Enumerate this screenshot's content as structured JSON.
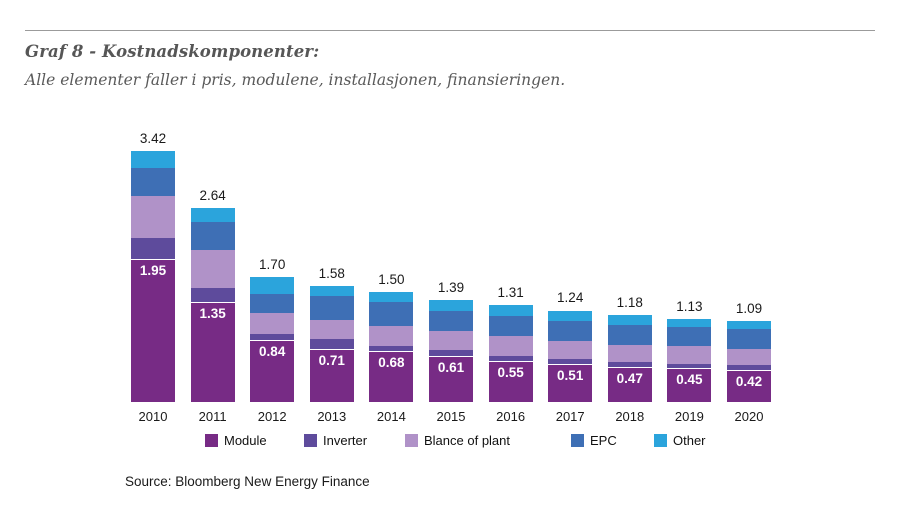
{
  "header": {
    "title": "Graf 8 - Kostnadskomponenter:",
    "subtitle": "Alle elementer faller i pris, modulene, installasjonen, finansieringen."
  },
  "source": "Source: Bloomberg New Energy Finance",
  "colors": {
    "module": "#772B85",
    "inverter": "#5E4B9C",
    "blance_of_plant": "#B092C8",
    "epc": "#3E6FB5",
    "other": "#2BA4DC",
    "value_text": "#1a1a1a",
    "bar_inner_label_text": "#ffffff",
    "title_text": "#565656",
    "rule": "#9b9b9b"
  },
  "chart_data": {
    "type": "bar",
    "stacked": true,
    "title": "Graf 8 - Kostnadskomponenter:",
    "subtitle": "Alle elementer faller i pris, modulene, installasjonen, finansieringen.",
    "xlabel": "",
    "ylabel": "",
    "categories": [
      "2010",
      "2011",
      "2012",
      "2013",
      "2014",
      "2015",
      "2016",
      "2017",
      "2018",
      "2019",
      "2020"
    ],
    "series": [
      {
        "name": "Module",
        "color": "#772B85",
        "values": [
          1.95,
          1.35,
          0.84,
          0.71,
          0.68,
          0.61,
          0.55,
          0.51,
          0.47,
          0.45,
          0.42
        ]
      },
      {
        "name": "Inverter",
        "color": "#5E4B9C",
        "values": [
          0.29,
          0.2,
          0.08,
          0.14,
          0.08,
          0.09,
          0.07,
          0.06,
          0.06,
          0.06,
          0.07
        ]
      },
      {
        "name": "Blance of plant",
        "color": "#B092C8",
        "values": [
          0.57,
          0.52,
          0.29,
          0.26,
          0.27,
          0.26,
          0.27,
          0.25,
          0.24,
          0.25,
          0.22
        ]
      },
      {
        "name": "EPC",
        "color": "#3E6FB5",
        "values": [
          0.38,
          0.38,
          0.26,
          0.33,
          0.32,
          0.27,
          0.27,
          0.27,
          0.27,
          0.25,
          0.27
        ]
      },
      {
        "name": "Other",
        "color": "#2BA4DC",
        "values": [
          0.23,
          0.19,
          0.23,
          0.14,
          0.15,
          0.16,
          0.15,
          0.15,
          0.14,
          0.12,
          0.11
        ]
      }
    ],
    "totals": [
      3.42,
      2.64,
      1.7,
      1.58,
      1.5,
      1.39,
      1.31,
      1.24,
      1.18,
      1.13,
      1.09
    ],
    "total_labels": [
      "3.42",
      "2.64",
      "1.70",
      "1.58",
      "1.50",
      "1.39",
      "1.31",
      "1.24",
      "1.18",
      "1.13",
      "1.09"
    ],
    "module_labels": [
      "1.95",
      "1.35",
      "0.84",
      "0.71",
      "0.68",
      "0.61",
      "0.55",
      "0.51",
      "0.47",
      "0.45",
      "0.42"
    ],
    "legend": [
      "Module",
      "Inverter",
      "Blance of plant",
      "EPC",
      "Other"
    ],
    "legend_position": "bottom",
    "grid": false,
    "y_axis_visible": false,
    "ylim": [
      0,
      3.6
    ]
  }
}
